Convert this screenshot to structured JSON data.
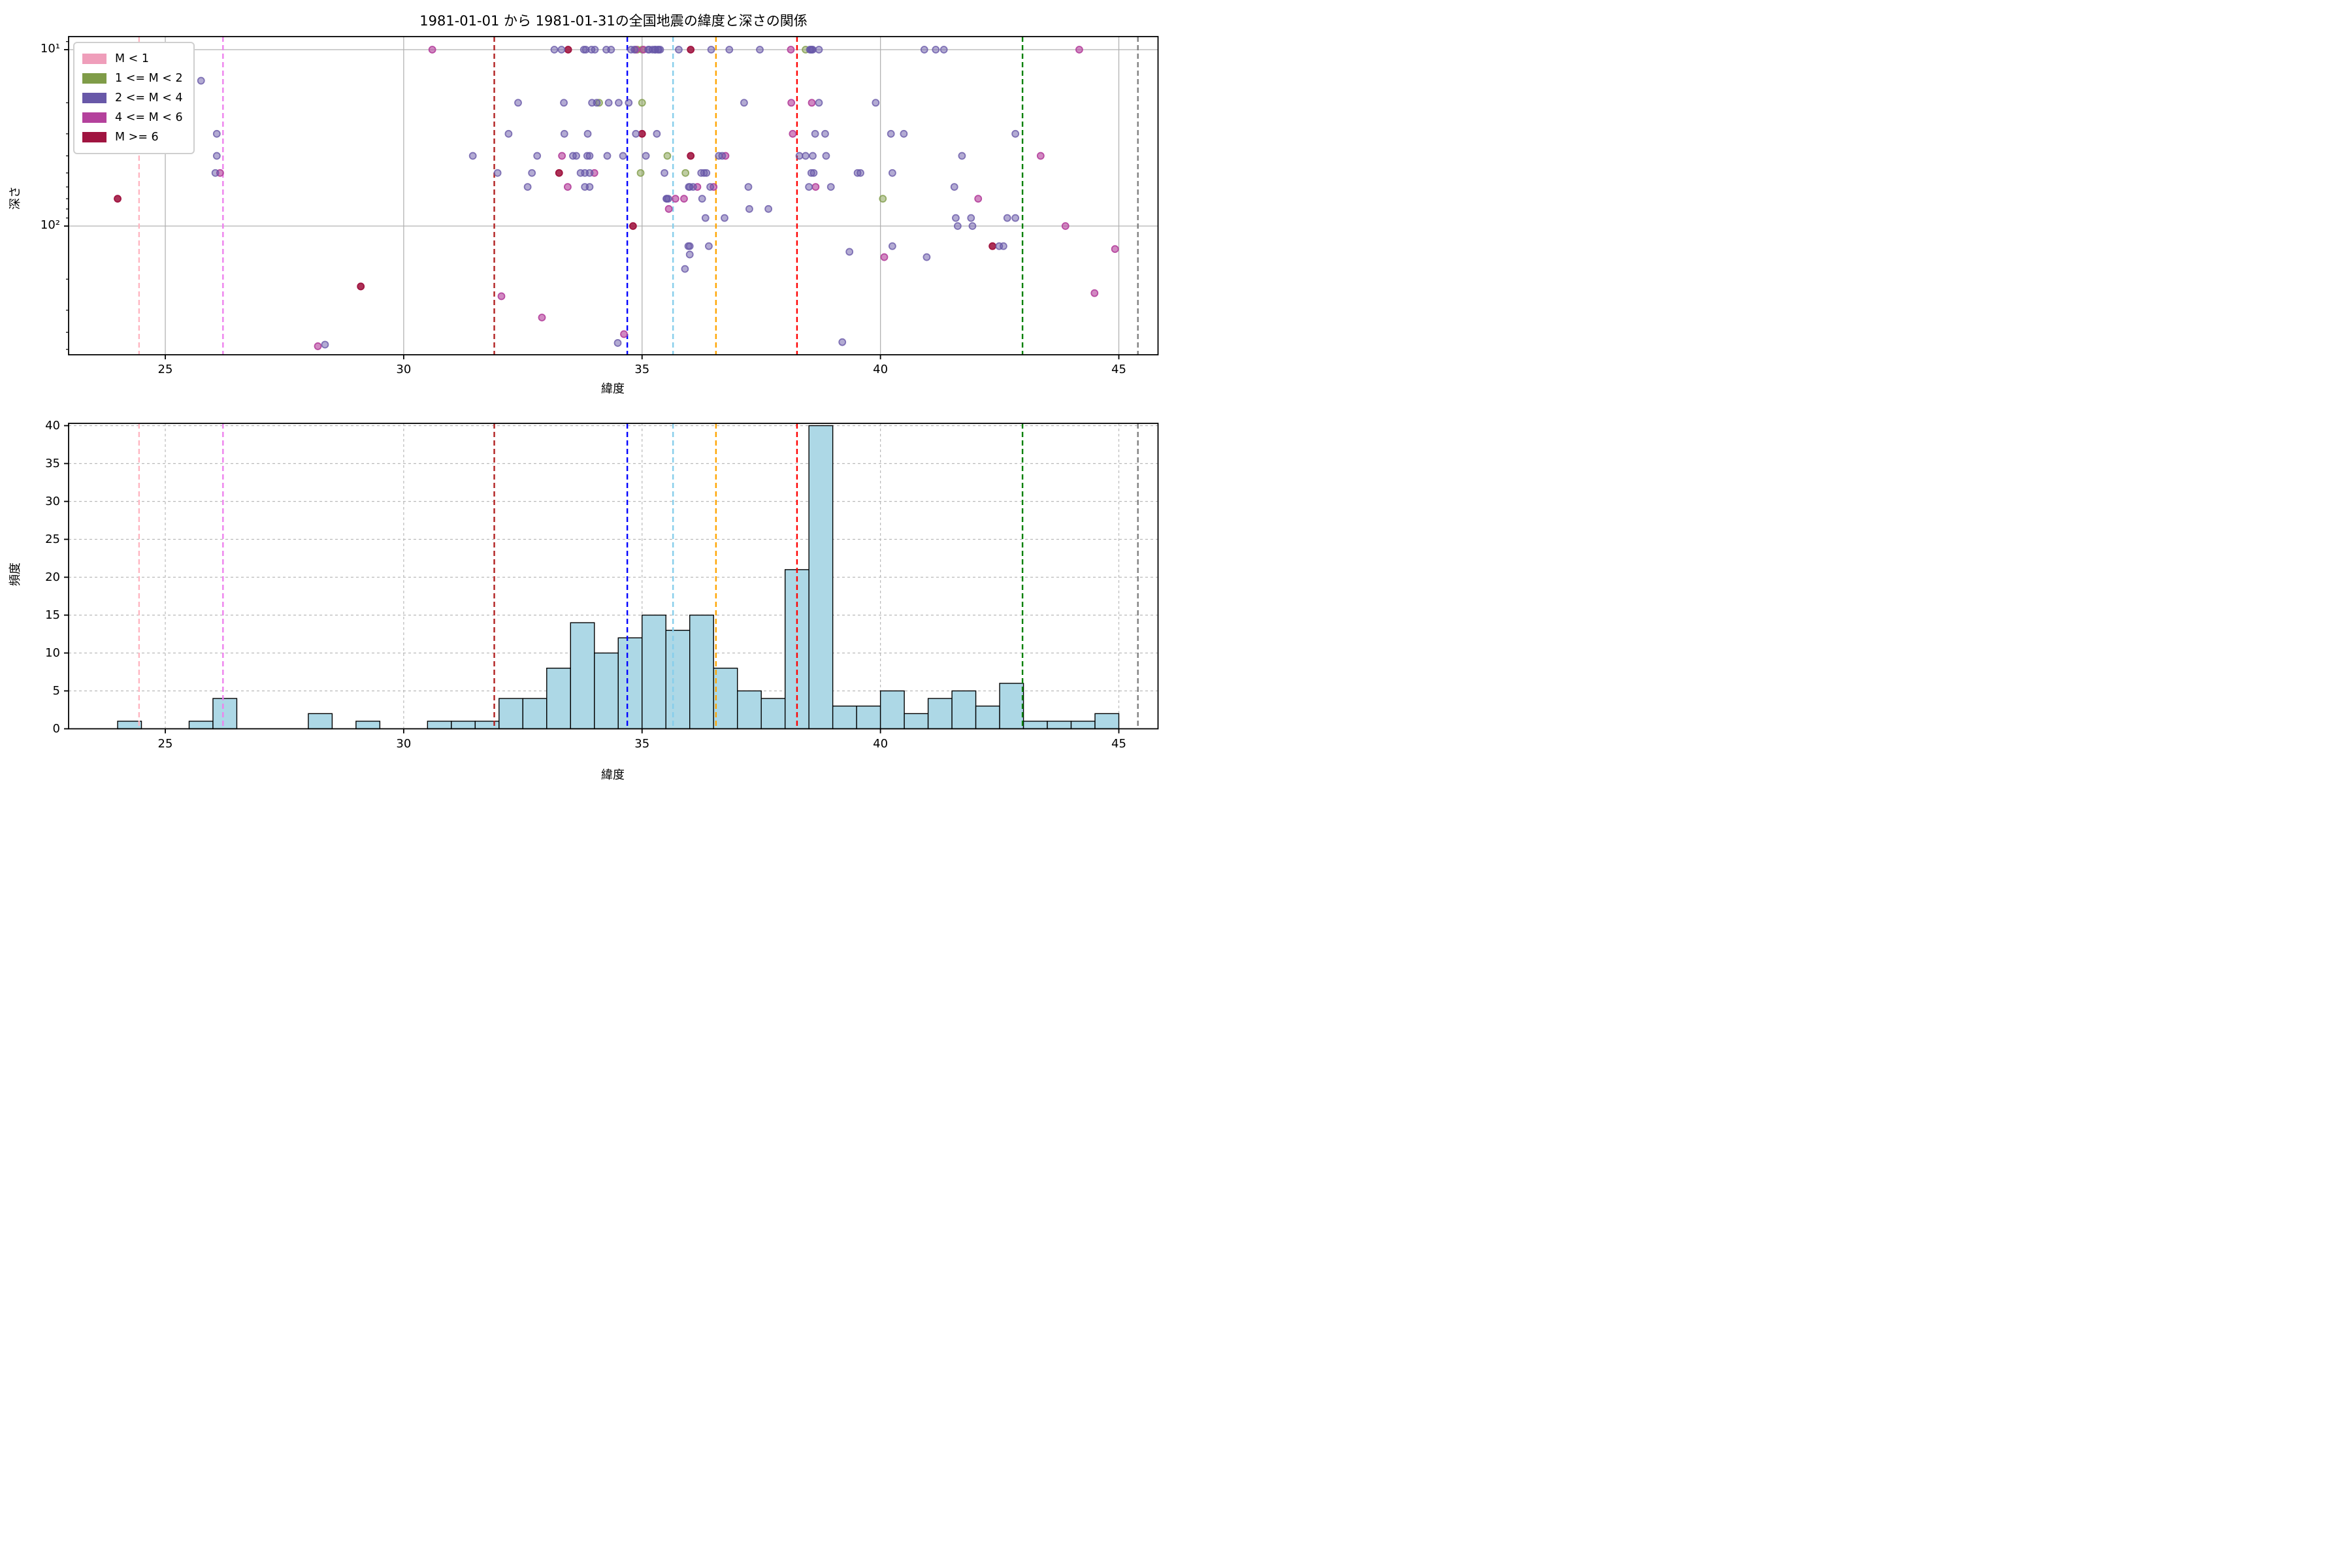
{
  "figure_title": "1981-01-01 から 1981-01-31の全国地震の緯度と深さの関係",
  "chart_data": [
    {
      "type": "scatter",
      "title": "1981-01-01 から 1981-01-31の全国地震の緯度と深さの関係",
      "xlabel": "緯度",
      "ylabel": "深さ",
      "xlim": [
        22.97,
        45.82
      ],
      "ylim_depth_log_inverted": [
        8.4,
        537
      ],
      "x_ticks": [
        25,
        30,
        35,
        40,
        45
      ],
      "y_ticks": [
        {
          "label": "10¹",
          "value": 10
        },
        {
          "label": "10²",
          "value": 100
        }
      ],
      "y_minor_ticks": [
        9,
        20,
        30,
        40,
        50,
        60,
        70,
        80,
        90,
        200,
        300,
        400,
        500
      ],
      "grid": "solid gray at x ticks and y decades",
      "legend_position": "upper left",
      "classes": [
        {
          "label": "M < 1",
          "color": "#ef9eba",
          "fill_opacity": 0.55
        },
        {
          "label": "1 <= M < 2",
          "color": "#7f9c48",
          "fill_opacity": 0.5
        },
        {
          "label": "2 <= M < 4",
          "color": "#6858a8",
          "fill_opacity": 0.5
        },
        {
          "label": "4 <= M < 6",
          "color": "#b4419c",
          "fill_opacity": 0.62
        },
        {
          "label": "M >= 6",
          "color": "#a01440",
          "fill_opacity": 0.88
        }
      ],
      "vlines": [
        {
          "lat": 24.45,
          "color": "#ffb6c1"
        },
        {
          "lat": 26.21,
          "color": "#ee82ee"
        },
        {
          "lat": 31.9,
          "color": "#b22222"
        },
        {
          "lat": 34.69,
          "color": "#0000ff"
        },
        {
          "lat": 35.65,
          "color": "#87ceeb"
        },
        {
          "lat": 36.55,
          "color": "#ffa500"
        },
        {
          "lat": 38.25,
          "color": "#ff0000"
        },
        {
          "lat": 42.98,
          "color": "#008000"
        },
        {
          "lat": 45.4,
          "color": "#808080"
        }
      ],
      "points_lat_depth_class": [
        [
          24.0,
          70,
          4
        ],
        [
          29.1,
          220,
          4
        ],
        [
          33.45,
          10,
          4
        ],
        [
          33.26,
          50,
          4
        ],
        [
          34.81,
          100,
          4
        ],
        [
          35.0,
          30,
          4
        ],
        [
          36.02,
          10,
          4
        ],
        [
          36.02,
          40,
          4
        ],
        [
          42.35,
          130,
          4
        ],
        [
          34.9,
          10,
          1
        ],
        [
          35.0,
          10,
          1
        ],
        [
          38.43,
          10,
          1
        ],
        [
          34.1,
          20,
          1
        ],
        [
          35.0,
          20,
          1
        ],
        [
          35.53,
          40,
          1
        ],
        [
          34.97,
          50,
          1
        ],
        [
          35.91,
          50,
          1
        ],
        [
          40.05,
          70,
          1
        ],
        [
          26.15,
          50,
          3
        ],
        [
          28.2,
          480,
          3
        ],
        [
          30.6,
          10,
          3
        ],
        [
          32.05,
          250,
          3
        ],
        [
          32.9,
          330,
          3
        ],
        [
          33.32,
          40,
          3
        ],
        [
          33.44,
          60,
          3
        ],
        [
          34.0,
          50,
          3
        ],
        [
          34.87,
          10,
          3
        ],
        [
          35.03,
          10,
          3
        ],
        [
          34.62,
          410,
          3
        ],
        [
          35.7,
          70,
          3
        ],
        [
          35.88,
          70,
          3
        ],
        [
          35.56,
          80,
          3
        ],
        [
          36.16,
          60,
          3
        ],
        [
          36.5,
          60,
          3
        ],
        [
          36.75,
          40,
          3
        ],
        [
          38.12,
          10,
          3
        ],
        [
          38.13,
          20,
          3
        ],
        [
          38.56,
          20,
          3
        ],
        [
          38.16,
          30,
          3
        ],
        [
          38.64,
          60,
          3
        ],
        [
          40.08,
          150,
          3
        ],
        [
          42.05,
          70,
          3
        ],
        [
          43.36,
          40,
          3
        ],
        [
          43.88,
          100,
          3
        ],
        [
          44.17,
          10,
          3
        ],
        [
          44.49,
          240,
          3
        ],
        [
          44.92,
          135,
          3
        ],
        [
          25.75,
          15,
          2
        ],
        [
          26.08,
          30,
          2
        ],
        [
          26.08,
          40,
          2
        ],
        [
          26.05,
          50,
          2
        ],
        [
          28.35,
          470,
          2
        ],
        [
          31.45,
          40,
          2
        ],
        [
          31.97,
          50,
          2
        ],
        [
          32.2,
          30,
          2
        ],
        [
          32.4,
          20,
          2
        ],
        [
          32.69,
          50,
          2
        ],
        [
          32.8,
          40,
          2
        ],
        [
          32.6,
          60,
          2
        ],
        [
          33.16,
          10,
          2
        ],
        [
          33.31,
          10,
          2
        ],
        [
          33.36,
          20,
          2
        ],
        [
          33.37,
          30,
          2
        ],
        [
          33.78,
          10,
          2
        ],
        [
          33.82,
          10,
          2
        ],
        [
          33.94,
          10,
          2
        ],
        [
          33.95,
          20,
          2
        ],
        [
          33.86,
          30,
          2
        ],
        [
          33.55,
          40,
          2
        ],
        [
          33.62,
          40,
          2
        ],
        [
          33.85,
          40,
          2
        ],
        [
          33.9,
          40,
          2
        ],
        [
          33.71,
          50,
          2
        ],
        [
          33.8,
          50,
          2
        ],
        [
          33.9,
          50,
          2
        ],
        [
          33.8,
          60,
          2
        ],
        [
          33.9,
          60,
          2
        ],
        [
          34.01,
          10,
          2
        ],
        [
          34.25,
          10,
          2
        ],
        [
          34.35,
          10,
          2
        ],
        [
          34.05,
          20,
          2
        ],
        [
          34.3,
          20,
          2
        ],
        [
          34.27,
          40,
          2
        ],
        [
          34.49,
          460,
          2
        ],
        [
          34.77,
          10,
          2
        ],
        [
          34.84,
          10,
          2
        ],
        [
          34.51,
          20,
          2
        ],
        [
          34.72,
          20,
          2
        ],
        [
          34.87,
          30,
          2
        ],
        [
          34.6,
          40,
          2
        ],
        [
          35.13,
          10,
          2
        ],
        [
          35.15,
          10,
          2
        ],
        [
          35.22,
          10,
          2
        ],
        [
          35.27,
          10,
          2
        ],
        [
          35.28,
          10,
          2
        ],
        [
          35.33,
          10,
          2
        ],
        [
          35.35,
          10,
          2
        ],
        [
          35.38,
          10,
          2
        ],
        [
          35.31,
          30,
          2
        ],
        [
          35.08,
          40,
          2
        ],
        [
          35.47,
          50,
          2
        ],
        [
          35.77,
          10,
          2
        ],
        [
          35.51,
          70,
          2
        ],
        [
          35.52,
          70,
          2
        ],
        [
          35.55,
          70,
          2
        ],
        [
          35.9,
          175,
          2
        ],
        [
          35.97,
          130,
          2
        ],
        [
          35.98,
          60,
          2
        ],
        [
          36.45,
          10,
          2
        ],
        [
          36.24,
          50,
          2
        ],
        [
          36.3,
          50,
          2
        ],
        [
          36.35,
          50,
          2
        ],
        [
          36.0,
          60,
          2
        ],
        [
          36.07,
          60,
          2
        ],
        [
          36.43,
          60,
          2
        ],
        [
          36.26,
          70,
          2
        ],
        [
          36.33,
          90,
          2
        ],
        [
          36.0,
          130,
          2
        ],
        [
          36.4,
          130,
          2
        ],
        [
          36.0,
          145,
          2
        ],
        [
          36.61,
          40,
          2
        ],
        [
          36.68,
          40,
          2
        ],
        [
          36.73,
          90,
          2
        ],
        [
          36.83,
          10,
          2
        ],
        [
          37.14,
          20,
          2
        ],
        [
          37.47,
          10,
          2
        ],
        [
          37.23,
          60,
          2
        ],
        [
          37.25,
          80,
          2
        ],
        [
          37.65,
          80,
          2
        ],
        [
          38.3,
          40,
          2
        ],
        [
          38.43,
          40,
          2
        ],
        [
          38.58,
          40,
          2
        ],
        [
          38.86,
          40,
          2
        ],
        [
          38.52,
          10,
          2
        ],
        [
          38.54,
          10,
          2
        ],
        [
          38.56,
          10,
          2
        ],
        [
          38.58,
          10,
          2
        ],
        [
          38.71,
          10,
          2
        ],
        [
          38.63,
          30,
          2
        ],
        [
          38.84,
          30,
          2
        ],
        [
          38.71,
          20,
          2
        ],
        [
          38.55,
          50,
          2
        ],
        [
          38.6,
          50,
          2
        ],
        [
          38.5,
          60,
          2
        ],
        [
          38.96,
          60,
          2
        ],
        [
          39.52,
          50,
          2
        ],
        [
          39.58,
          50,
          2
        ],
        [
          39.9,
          20,
          2
        ],
        [
          39.35,
          140,
          2
        ],
        [
          39.2,
          455,
          2
        ],
        [
          40.22,
          30,
          2
        ],
        [
          40.49,
          30,
          2
        ],
        [
          40.25,
          50,
          2
        ],
        [
          40.25,
          130,
          2
        ],
        [
          40.92,
          10,
          2
        ],
        [
          40.97,
          150,
          2
        ],
        [
          41.16,
          10,
          2
        ],
        [
          41.33,
          10,
          2
        ],
        [
          41.71,
          40,
          2
        ],
        [
          41.55,
          60,
          2
        ],
        [
          41.58,
          90,
          2
        ],
        [
          41.9,
          90,
          2
        ],
        [
          42.66,
          90,
          2
        ],
        [
          42.83,
          90,
          2
        ],
        [
          41.62,
          100,
          2
        ],
        [
          41.93,
          100,
          2
        ],
        [
          42.49,
          130,
          2
        ],
        [
          42.58,
          130,
          2
        ],
        [
          42.83,
          30,
          2
        ]
      ]
    },
    {
      "type": "bar",
      "subtype": "histogram",
      "xlabel": "緯度",
      "ylabel": "頻度",
      "xlim": [
        22.97,
        45.82
      ],
      "ylim": [
        0,
        40.3
      ],
      "x_ticks": [
        25,
        30,
        35,
        40,
        45
      ],
      "y_ticks": [
        0,
        5,
        10,
        15,
        20,
        25,
        30,
        35,
        40
      ],
      "grid": "dashed gray at x and y ticks",
      "bar_color": "#add8e6",
      "bar_edge_color": "#000000",
      "bin_start": 24.0,
      "bin_width": 0.5,
      "values": [
        1,
        0,
        0,
        1,
        4,
        0,
        0,
        0,
        2,
        0,
        1,
        0,
        0,
        1,
        1,
        1,
        4,
        4,
        8,
        14,
        10,
        12,
        15,
        13,
        15,
        8,
        5,
        4,
        21,
        40,
        3,
        3,
        5,
        2,
        4,
        5,
        3,
        6,
        1,
        1,
        1,
        2
      ],
      "vlines": [
        {
          "lat": 24.45,
          "color": "#ffb6c1"
        },
        {
          "lat": 26.21,
          "color": "#ee82ee"
        },
        {
          "lat": 31.9,
          "color": "#b22222"
        },
        {
          "lat": 34.69,
          "color": "#0000ff"
        },
        {
          "lat": 35.65,
          "color": "#87ceeb"
        },
        {
          "lat": 36.55,
          "color": "#ffa500"
        },
        {
          "lat": 38.25,
          "color": "#ff0000"
        },
        {
          "lat": 42.98,
          "color": "#008000"
        },
        {
          "lat": 45.4,
          "color": "#808080"
        }
      ]
    }
  ]
}
